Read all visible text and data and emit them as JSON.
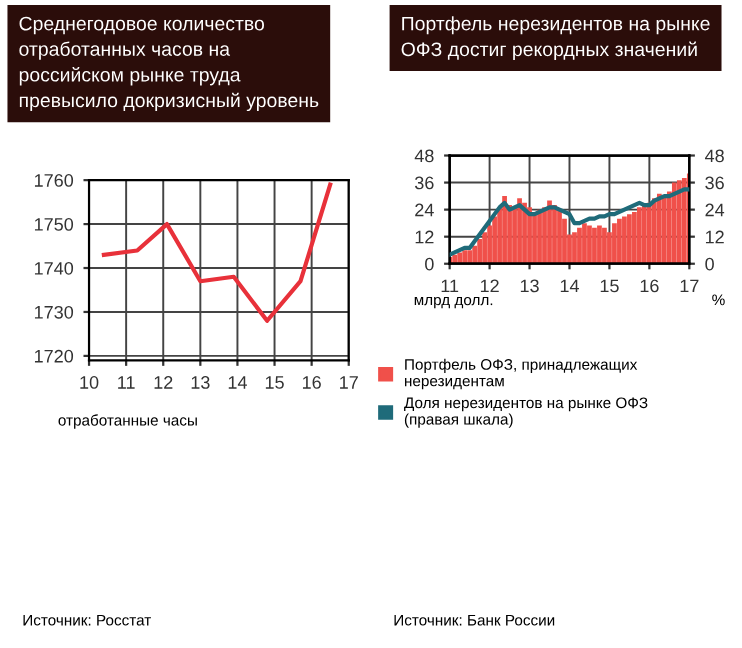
{
  "chart_data": [
    {
      "type": "line",
      "title": "Среднегодовое количество отработанных часов на российском рынке труда превысило докризисный уровень",
      "ylabel": "отработанные часы",
      "x": [
        10.4,
        11.3,
        12.1,
        13.0,
        13.9,
        14.8,
        15.7,
        16.5
      ],
      "series": [
        {
          "color": "#e8313a",
          "values": [
            1743,
            1744,
            1750,
            1737,
            1738,
            1728,
            1737,
            1759
          ]
        }
      ],
      "xlim": [
        10,
        17
      ],
      "xticks": [
        10,
        11,
        12,
        13,
        14,
        15,
        16,
        17
      ],
      "ylim": [
        1719,
        1760
      ],
      "yticks": [
        1720,
        1730,
        1740,
        1750,
        1760
      ],
      "grid": true,
      "marker": "none",
      "line_style": "solid",
      "annotations": [
        "Источник: Росстат"
      ]
    },
    {
      "type": "bar",
      "title": "Портфель нерезидентов на рынке ОФЗ достиг рекордных значений",
      "ylabel": "млрд долл.",
      "y2label": "%",
      "x": [
        11.0,
        11.125,
        11.25,
        11.375,
        11.5,
        11.625,
        11.75,
        11.875,
        12.0,
        12.125,
        12.25,
        12.375,
        12.5,
        12.625,
        12.75,
        12.875,
        13.0,
        13.125,
        13.25,
        13.375,
        13.5,
        13.625,
        13.75,
        13.875,
        14.0,
        14.125,
        14.25,
        14.375,
        14.5,
        14.625,
        14.75,
        14.875,
        15.0,
        15.125,
        15.25,
        15.375,
        15.5,
        15.625,
        15.75,
        15.875,
        16.0,
        16.125,
        16.25,
        16.375,
        16.5,
        16.625,
        16.75,
        16.875,
        17.0
      ],
      "series": [
        {
          "name": "Портфель ОФЗ, принадлежащих нерезидентам",
          "type": "bar",
          "color": "#f0504a",
          "values": [
            3,
            4,
            5,
            6,
            6,
            8,
            11,
            14,
            17,
            21,
            25,
            30,
            26,
            25,
            29,
            27,
            25,
            23,
            24,
            25,
            28,
            26,
            24,
            20,
            13,
            14,
            16,
            18,
            17,
            16,
            17,
            16,
            14,
            18,
            20,
            21,
            22,
            23,
            25,
            26,
            27,
            29,
            31,
            30,
            32,
            36,
            37,
            38,
            40
          ]
        },
        {
          "name": "Доля нерезидентов на рынке ОФЗ (правая шкала)",
          "type": "line",
          "axis": "y2",
          "color": "#1f6b7a",
          "values": [
            4,
            5,
            6,
            7,
            7,
            10,
            13,
            16,
            19,
            22,
            25,
            27,
            24,
            25,
            26,
            24,
            22,
            22,
            23,
            24,
            25,
            25,
            24,
            23,
            22,
            18,
            18,
            19,
            20,
            20,
            21,
            21,
            22,
            22,
            23,
            24,
            25,
            26,
            27,
            26,
            26,
            28,
            29,
            30,
            30,
            31,
            32,
            33,
            33
          ]
        }
      ],
      "xlim": [
        11,
        17
      ],
      "xticks": [
        11,
        12,
        13,
        14,
        15,
        16,
        17
      ],
      "ylim": [
        0,
        48
      ],
      "yticks": [
        0,
        12,
        24,
        36,
        48
      ],
      "y2lim": [
        0,
        48
      ],
      "y2ticks": [
        0,
        12,
        24,
        36,
        48
      ],
      "grid": true,
      "legend": "bottom",
      "annotations": [
        "Источник: Банк России"
      ]
    }
  ]
}
